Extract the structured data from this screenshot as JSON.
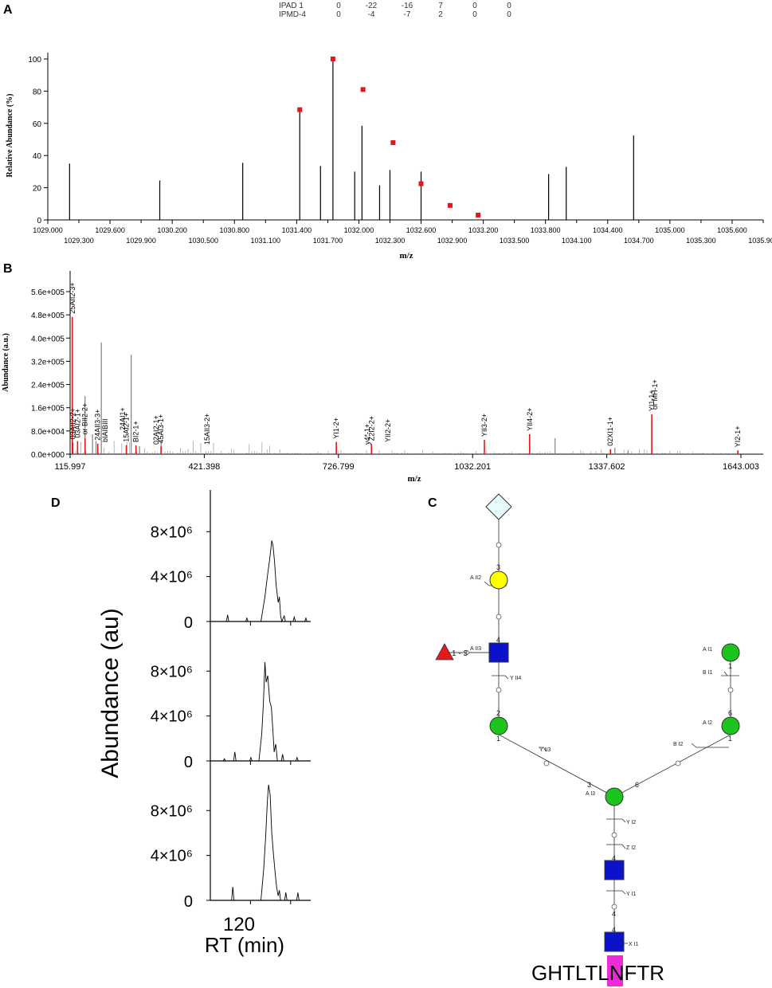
{
  "panels": {
    "a": "A",
    "b": "B",
    "c": "C",
    "d": "D"
  },
  "ipad_table": {
    "rows": [
      {
        "label": "IPAD 1",
        "values": [
          "0",
          "-22",
          "-16",
          "7",
          "0",
          "0"
        ]
      },
      {
        "label": "IPMD-4",
        "values": [
          "0",
          "-4",
          "-7",
          "2",
          "0",
          "0"
        ]
      }
    ]
  },
  "chart_data": [
    {
      "id": "A",
      "type": "bar",
      "xlabel": "m/z",
      "ylabel": "Relative Abundance (%)",
      "xlim": [
        1029.0,
        1035.9
      ],
      "ylim": [
        0,
        100
      ],
      "yticks": [
        "0",
        "20",
        "40",
        "60",
        "80",
        "100"
      ],
      "xticks_top": [
        "1029.000",
        "1029.600",
        "1030.200",
        "1030.800",
        "1031.400",
        "1032.000",
        "1032.600",
        "1033.200",
        "1033.800",
        "1034.400",
        "1035.000",
        "1035.600"
      ],
      "xticks_bottom": [
        "1029.300",
        "1029.900",
        "1030.500",
        "1031.100",
        "1031.700",
        "1032.300",
        "1032.900",
        "1033.500",
        "1034.100",
        "1034.700",
        "1035.300",
        "1035.900"
      ],
      "series": [
        {
          "values": [
            {
              "x": 1029.21,
              "y": 35
            },
            {
              "x": 1030.08,
              "y": 24.5
            },
            {
              "x": 1030.88,
              "y": 35.5
            },
            {
              "x": 1031.43,
              "y": 69
            },
            {
              "x": 1031.63,
              "y": 33.5
            },
            {
              "x": 1031.75,
              "y": 100
            },
            {
              "x": 1031.96,
              "y": 30
            },
            {
              "x": 1032.03,
              "y": 58.5
            },
            {
              "x": 1032.2,
              "y": 21.5
            },
            {
              "x": 1032.3,
              "y": 31
            },
            {
              "x": 1032.6,
              "y": 30
            },
            {
              "x": 1033.83,
              "y": 28.5
            },
            {
              "x": 1034.0,
              "y": 33
            },
            {
              "x": 1034.65,
              "y": 52.5
            }
          ]
        },
        {
          "marker": "square",
          "color": "#e8141a",
          "values": [
            {
              "x": 1031.43,
              "y": 68.5
            },
            {
              "x": 1031.75,
              "y": 100
            },
            {
              "x": 1032.04,
              "y": 81
            },
            {
              "x": 1032.33,
              "y": 48
            },
            {
              "x": 1032.6,
              "y": 22.5
            },
            {
              "x": 1032.88,
              "y": 9
            },
            {
              "x": 1033.15,
              "y": 3
            }
          ]
        }
      ]
    },
    {
      "id": "B",
      "type": "bar",
      "xlabel": "m/z",
      "ylabel": "Abundance (a.u.)",
      "xlim": [
        115.997,
        1643.003
      ],
      "ylim": [
        0,
        560000
      ],
      "yticks": [
        "0.0e+000",
        "8.0e+004",
        "1.6e+005",
        "2.4e+005",
        "3.2e+005",
        "4.0e+005",
        "4.8e+005",
        "5.6e+005"
      ],
      "xticks": [
        "115.997",
        "421.398",
        "726.799",
        "1032.201",
        "1337.602",
        "1643.003"
      ],
      "series": [
        {
          "color": "#e8141a",
          "values": [
            {
              "x": 121,
              "y": 473000,
              "label": "25AII2-3+"
            },
            {
              "x": 122,
              "y": 40000,
              "label": "03AII2-2+"
            },
            {
              "x": 133,
              "y": 45000,
              "label": "03AI2-1+"
            },
            {
              "x": 150,
              "y": 56000,
              "label": "or BII2-2+"
            },
            {
              "x": 179,
              "y": 36000,
              "label": "24AII3-3+"
            },
            {
              "x": 244,
              "y": 31000,
              "label": "15AI2-1+"
            },
            {
              "x": 266,
              "y": 30000,
              "label": "BI2-1+"
            },
            {
              "x": 323,
              "y": 26000,
              "label": "45AI3-1+"
            },
            {
              "x": 722,
              "y": 42000,
              "label": "YI1-2+"
            },
            {
              "x": 802,
              "y": 35000,
              "label": "Z2I2-2+"
            },
            {
              "x": 1059,
              "y": 49000,
              "label": "YII3-2+"
            },
            {
              "x": 1162,
              "y": 69000,
              "label": "YII4-2+"
            },
            {
              "x": 1346,
              "y": 17000,
              "label": "02XI1-1+"
            },
            {
              "x": 1440,
              "y": 137000,
              "label": "YI1-1+"
            },
            {
              "x": 1636,
              "y": 13000,
              "label": "YI2-1+"
            }
          ]
        },
        {
          "color": "#808080",
          "values": [
            {
              "x": 150,
              "y": 200000
            },
            {
              "x": 167,
              "y": 68000
            },
            {
              "x": 175,
              "y": 45000
            },
            {
              "x": 187,
              "y": 385000
            },
            {
              "x": 255,
              "y": 342000
            },
            {
              "x": 274,
              "y": 27000
            },
            {
              "x": 323,
              "y": 45000
            },
            {
              "x": 1220,
              "y": 55000
            },
            {
              "x": 1356,
              "y": 22000
            },
            {
              "x": 1386,
              "y": 13000
            }
          ]
        }
      ],
      "annotations": [
        "bIAIBIII",
        "24AI1+",
        "02AI2-1+",
        "15AII3-2+",
        "y4*-1+",
        "YII2-2+",
        "or MH-1+"
      ]
    },
    {
      "id": "D",
      "type": "line",
      "xlabel": "RT (min)",
      "ylabel": "Abundance (au)",
      "xlim": [
        110,
        135
      ],
      "xticks": [
        "120"
      ],
      "ylim": [
        0,
        11000000
      ],
      "yticks": [
        "0",
        "4×10⁶",
        "8×10⁶"
      ],
      "series": [
        {
          "values": [
            {
              "x": 114.0,
              "y": 0
            },
            {
              "x": 114.3,
              "y": 600000
            },
            {
              "x": 114.6,
              "y": 0
            },
            {
              "x": 118.8,
              "y": 0
            },
            {
              "x": 119.1,
              "y": 300000
            },
            {
              "x": 119.4,
              "y": 0
            },
            {
              "x": 122.6,
              "y": 0
            },
            {
              "x": 123.6,
              "y": 2200000
            },
            {
              "x": 124.2,
              "y": 4000000
            },
            {
              "x": 124.8,
              "y": 5600000
            },
            {
              "x": 125.3,
              "y": 7200000
            },
            {
              "x": 125.6,
              "y": 6800000
            },
            {
              "x": 126.0,
              "y": 5300000
            },
            {
              "x": 126.4,
              "y": 3200000
            },
            {
              "x": 126.9,
              "y": 1700000
            },
            {
              "x": 127.2,
              "y": 2200000
            },
            {
              "x": 127.5,
              "y": 500000
            },
            {
              "x": 127.8,
              "y": 0
            },
            {
              "x": 128.4,
              "y": 500000
            },
            {
              "x": 128.7,
              "y": 0
            },
            {
              "x": 130.6,
              "y": 0
            },
            {
              "x": 130.9,
              "y": 400000
            },
            {
              "x": 131.2,
              "y": 0
            },
            {
              "x": 133.5,
              "y": 0
            },
            {
              "x": 133.8,
              "y": 300000
            },
            {
              "x": 134.1,
              "y": 0
            }
          ]
        },
        {
          "values": [
            {
              "x": 113.2,
              "y": 0
            },
            {
              "x": 113.5,
              "y": 200000
            },
            {
              "x": 113.8,
              "y": 0
            },
            {
              "x": 115.8,
              "y": 0
            },
            {
              "x": 116.1,
              "y": 800000
            },
            {
              "x": 116.4,
              "y": 0
            },
            {
              "x": 119.8,
              "y": 0
            },
            {
              "x": 120.1,
              "y": 300000
            },
            {
              "x": 120.4,
              "y": 0
            },
            {
              "x": 122.1,
              "y": 0
            },
            {
              "x": 122.8,
              "y": 2400000
            },
            {
              "x": 123.2,
              "y": 5000000
            },
            {
              "x": 123.6,
              "y": 8800000
            },
            {
              "x": 123.9,
              "y": 7000000
            },
            {
              "x": 124.3,
              "y": 7600000
            },
            {
              "x": 124.8,
              "y": 5300000
            },
            {
              "x": 125.2,
              "y": 4800000
            },
            {
              "x": 125.6,
              "y": 2600000
            },
            {
              "x": 125.9,
              "y": 800000
            },
            {
              "x": 126.3,
              "y": 1500000
            },
            {
              "x": 126.7,
              "y": 0
            },
            {
              "x": 127.7,
              "y": 0
            },
            {
              "x": 128.0,
              "y": 600000
            },
            {
              "x": 128.3,
              "y": 0
            },
            {
              "x": 131.3,
              "y": 0
            },
            {
              "x": 131.6,
              "y": 300000
            },
            {
              "x": 131.9,
              "y": 0
            }
          ]
        },
        {
          "values": [
            {
              "x": 115.3,
              "y": 0
            },
            {
              "x": 115.6,
              "y": 1200000
            },
            {
              "x": 115.9,
              "y": 0
            },
            {
              "x": 122.6,
              "y": 0
            },
            {
              "x": 123.3,
              "y": 2800000
            },
            {
              "x": 123.8,
              "y": 5800000
            },
            {
              "x": 124.2,
              "y": 8800000
            },
            {
              "x": 124.5,
              "y": 10300000
            },
            {
              "x": 124.9,
              "y": 9400000
            },
            {
              "x": 125.3,
              "y": 6000000
            },
            {
              "x": 125.7,
              "y": 4200000
            },
            {
              "x": 126.1,
              "y": 2600000
            },
            {
              "x": 126.5,
              "y": 1200000
            },
            {
              "x": 126.9,
              "y": 400000
            },
            {
              "x": 127.2,
              "y": 900000
            },
            {
              "x": 127.5,
              "y": 0
            },
            {
              "x": 128.5,
              "y": 0
            },
            {
              "x": 128.8,
              "y": 700000
            },
            {
              "x": 129.1,
              "y": 0
            },
            {
              "x": 131.5,
              "y": 0
            },
            {
              "x": 131.8,
              "y": 700000
            },
            {
              "x": 132.1,
              "y": 0
            }
          ]
        }
      ]
    }
  ],
  "glycan": {
    "peptide": {
      "before": "GHTLTL",
      "site": "N",
      "after": "FTR"
    },
    "site_color": "#ee2bd8",
    "colors": {
      "glcnac": "#0b13c8",
      "mannose": "#1cc41e",
      "galactose": "#ffff00",
      "sialic": "#e6fbfb",
      "fucose": "#e11b1b"
    },
    "linkage_numbers": [
      "3",
      "4",
      "4",
      "2",
      "1",
      "1",
      "6",
      "1",
      "3",
      "6",
      "4",
      "4"
    ],
    "fucose_link": "1 - 3",
    "cleavage_labels": {
      "aii2": "A II2",
      "aii3": "A II3",
      "yii4": "Y II4",
      "yii3": "Y II3",
      "ai1": "A I1",
      "bi1": "B I1",
      "ai2": "A I2",
      "bi2": "B I2",
      "ai3": "A I3",
      "yi2": "Y I2",
      "zi2": "Z I2",
      "yi1": "Y I1",
      "xi1": "X I1"
    }
  }
}
